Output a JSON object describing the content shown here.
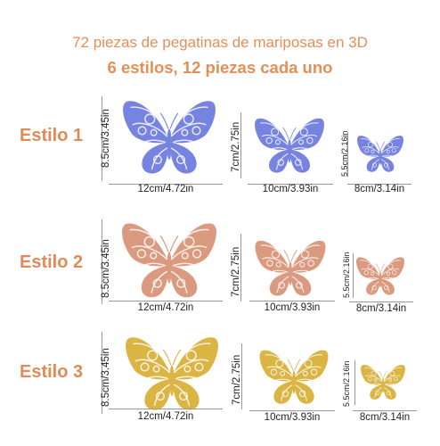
{
  "header": {
    "title": "72 piezas de pegatinas de mariposas en 3D",
    "subtitle": "6 estilos, 12 piezas cada uno"
  },
  "rows": [
    {
      "label": "Estilo 1",
      "color": "#6f7de0",
      "sizes": [
        {
          "height_label": "8.5cm/3.45in",
          "width_label": "12cm/4.72in"
        },
        {
          "height_label": "7cm/2.75in",
          "width_label": "10cm/3.93in"
        },
        {
          "height_label": "5.5cm/2.16in",
          "width_label": "8cm/3.14in"
        }
      ]
    },
    {
      "label": "Estilo 2",
      "color": "#d9957a",
      "sizes": [
        {
          "height_label": "8.5cm/3.45in",
          "width_label": "12cm/4.72in"
        },
        {
          "height_label": "7cm/2.75in",
          "width_label": "10cm/3.93in"
        },
        {
          "height_label": "5.5cm/2.16in",
          "width_label": "8cm/3.14in"
        }
      ]
    },
    {
      "label": "Estilo 3",
      "color": "#d9b23a",
      "sizes": [
        {
          "height_label": "8.5cm/3.45in",
          "width_label": "12cm/4.72in"
        },
        {
          "height_label": "7cm/2.75in",
          "width_label": "10cm/3.93in"
        },
        {
          "height_label": "5.5cm/2.16in",
          "width_label": "8cm/3.14in"
        }
      ]
    }
  ]
}
